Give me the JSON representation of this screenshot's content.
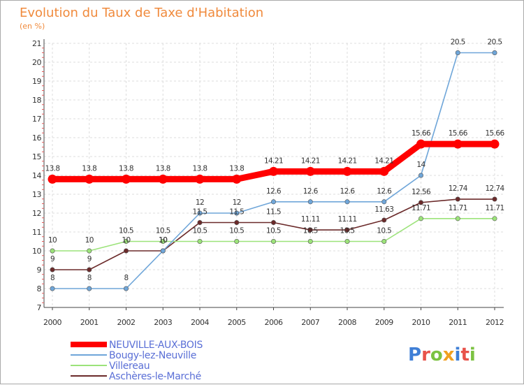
{
  "chart_data": {
    "type": "line",
    "title": "Evolution du Taux de Taxe d'Habitation",
    "subtitle": "(en %)",
    "ylim": [
      7,
      21
    ],
    "yticks": [
      7,
      8,
      9,
      10,
      11,
      12,
      13,
      14,
      15,
      16,
      17,
      18,
      19,
      20,
      21
    ],
    "x": [
      "2000",
      "2001",
      "2002",
      "2003",
      "2004",
      "2005",
      "2006",
      "2007",
      "2008",
      "2009",
      "2010",
      "2011",
      "2012"
    ],
    "grid": true,
    "series": [
      {
        "name": "NEUVILLE-AUX-BOIS",
        "color": "#ff0000",
        "values": [
          13.8,
          13.8,
          13.8,
          13.8,
          13.8,
          13.8,
          14.21,
          14.21,
          14.21,
          14.21,
          15.66,
          15.66,
          15.66
        ],
        "labels": [
          "13.8",
          "13.8",
          "13.8",
          "13.8",
          "13.8",
          "13.8",
          "14.21",
          "14.21",
          "14.21",
          "14.21",
          "15.66",
          "15.66",
          "15.66"
        ]
      },
      {
        "name": "Bougy-lez-Neuville",
        "color": "#6fa6d9",
        "values": [
          8,
          8,
          8,
          10,
          12,
          12,
          12.6,
          12.6,
          12.6,
          12.6,
          14,
          20.5,
          20.5
        ],
        "labels": [
          "8",
          "8",
          "8",
          "10",
          "12",
          "12",
          "12.6",
          "12.6",
          "12.6",
          "12.6",
          "14",
          "20.5",
          "20.5"
        ]
      },
      {
        "name": "Villereau",
        "color": "#9ce37a",
        "values": [
          10,
          10,
          10.5,
          10.5,
          10.5,
          10.5,
          10.5,
          10.5,
          10.5,
          10.5,
          11.71,
          11.71,
          11.71
        ],
        "labels": [
          "10",
          "10",
          "10.5",
          "10.5",
          "10.5",
          "10.5",
          "10.5",
          "10.5",
          "10.5",
          "10.5",
          "11.71",
          "11.71",
          "11.71"
        ]
      },
      {
        "name": "Aschères-le-Marché",
        "color": "#6b2a2a",
        "values": [
          9,
          9,
          10,
          10,
          11.5,
          11.5,
          11.5,
          11.11,
          11.11,
          11.63,
          12.56,
          12.74,
          12.74
        ],
        "labels": [
          "9",
          "9",
          "10",
          "10",
          "11.5",
          "11.5",
          "11.5",
          "11.11",
          "11.11",
          "11.63",
          "12.56",
          "12.74",
          "12.74"
        ]
      }
    ]
  },
  "logo": {
    "text": "Proxiti"
  }
}
